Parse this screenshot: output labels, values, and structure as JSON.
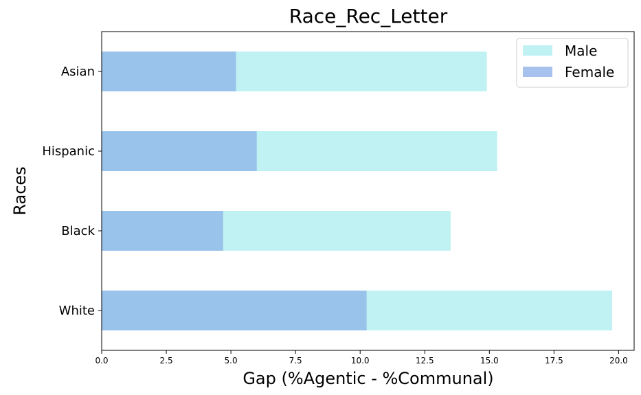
{
  "chart_data": {
    "type": "bar",
    "orientation": "horizontal",
    "stacked": false,
    "title": "Race_Rec_Letter",
    "xlabel": "Gap (%Agentic - %Communal)",
    "ylabel": "Races",
    "categories": [
      "White",
      "Black",
      "Hispanic",
      "Asian"
    ],
    "series": [
      {
        "name": "Male",
        "values": [
          19.75,
          13.5,
          15.3,
          14.9
        ],
        "color": "#c0f2f4"
      },
      {
        "name": "Female",
        "values": [
          10.25,
          4.7,
          6.0,
          5.2
        ],
        "color": "#9ac3eb"
      }
    ],
    "legend_swatches": [
      "#c0f2f4",
      "#a8c2ee"
    ],
    "xlim": [
      0,
      20.6
    ],
    "xticks": [
      "0.0",
      "2.5",
      "5.0",
      "7.5",
      "10.0",
      "12.5",
      "15.0",
      "17.5",
      "20.0"
    ],
    "grid": false,
    "legend_position": "top-right"
  }
}
